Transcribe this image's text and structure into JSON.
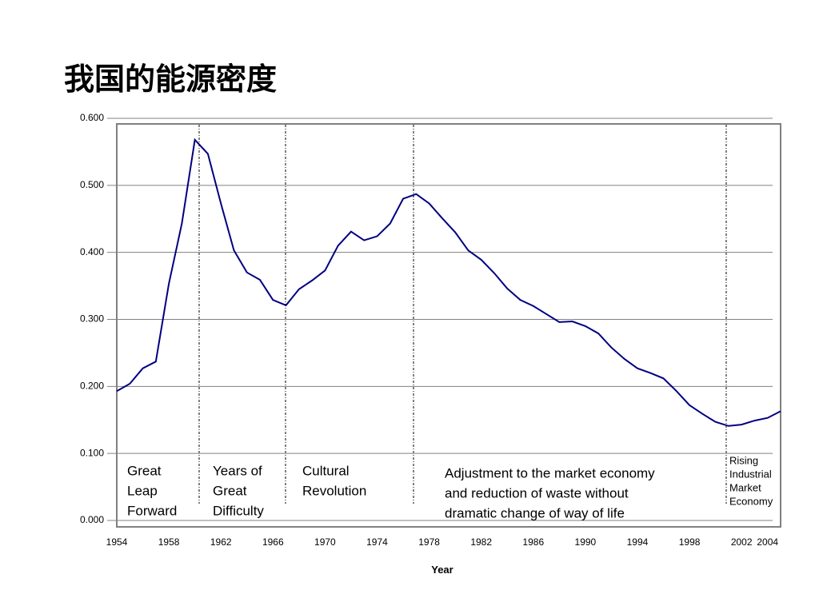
{
  "chart_data": {
    "type": "line",
    "title": "我国的能源密度",
    "x_label": "Year",
    "x": [
      1954,
      1955,
      1956,
      1957,
      1958,
      1959,
      1960,
      1961,
      1962,
      1963,
      1964,
      1965,
      1966,
      1967,
      1968,
      1969,
      1970,
      1971,
      1972,
      1973,
      1974,
      1975,
      1976,
      1977,
      1978,
      1979,
      1980,
      1981,
      1982,
      1983,
      1984,
      1985,
      1986,
      1987,
      1988,
      1989,
      1990,
      1991,
      1992,
      1993,
      1994,
      1995,
      1996,
      1997,
      1998,
      1999,
      2000,
      2001,
      2002,
      2003,
      2004,
      2005
    ],
    "series": [
      {
        "color": "#000080",
        "values": [
          0.193,
          0.204,
          0.227,
          0.237,
          0.353,
          0.443,
          0.568,
          0.547,
          0.473,
          0.403,
          0.37,
          0.359,
          0.329,
          0.321,
          0.345,
          0.358,
          0.373,
          0.41,
          0.431,
          0.418,
          0.424,
          0.443,
          0.48,
          0.487,
          0.473,
          0.451,
          0.43,
          0.403,
          0.389,
          0.369,
          0.346,
          0.329,
          0.32,
          0.308,
          0.296,
          0.297,
          0.29,
          0.279,
          0.258,
          0.241,
          0.227,
          0.22,
          0.212,
          0.193,
          0.172,
          0.159,
          0.147,
          0.141,
          0.143,
          0.149,
          0.153,
          0.163
        ]
      }
    ],
    "xlim": [
      1954,
      2005
    ],
    "ylim": [
      0,
      0.6
    ],
    "xticks": [
      1954,
      1958,
      1962,
      1966,
      1970,
      1974,
      1978,
      1982,
      1986,
      1990,
      1994,
      1998,
      2002,
      2004
    ],
    "yticks": [
      {
        "value": 0,
        "label": "0.000"
      },
      {
        "value": 0.1,
        "label": "0.100"
      },
      {
        "value": 0.2,
        "label": "0.200"
      },
      {
        "value": 0.3,
        "label": "0.300"
      },
      {
        "value": 0.4,
        "label": "0.400"
      },
      {
        "value": 0.5,
        "label": "0.500"
      },
      {
        "value": 0.6,
        "label": "0.600"
      }
    ],
    "grid": true,
    "annotations": [
      [
        "Great",
        "Leap",
        "Forward"
      ],
      [
        "Years of",
        "Great",
        "Difficulty"
      ],
      [
        "Cultural",
        "Revolution"
      ],
      [
        "Adjustment to the market economy",
        "and reduction of waste without",
        "dramatic change of way of life"
      ],
      [
        "Rising",
        "Industrial",
        "Market",
        "Economy"
      ]
    ]
  }
}
